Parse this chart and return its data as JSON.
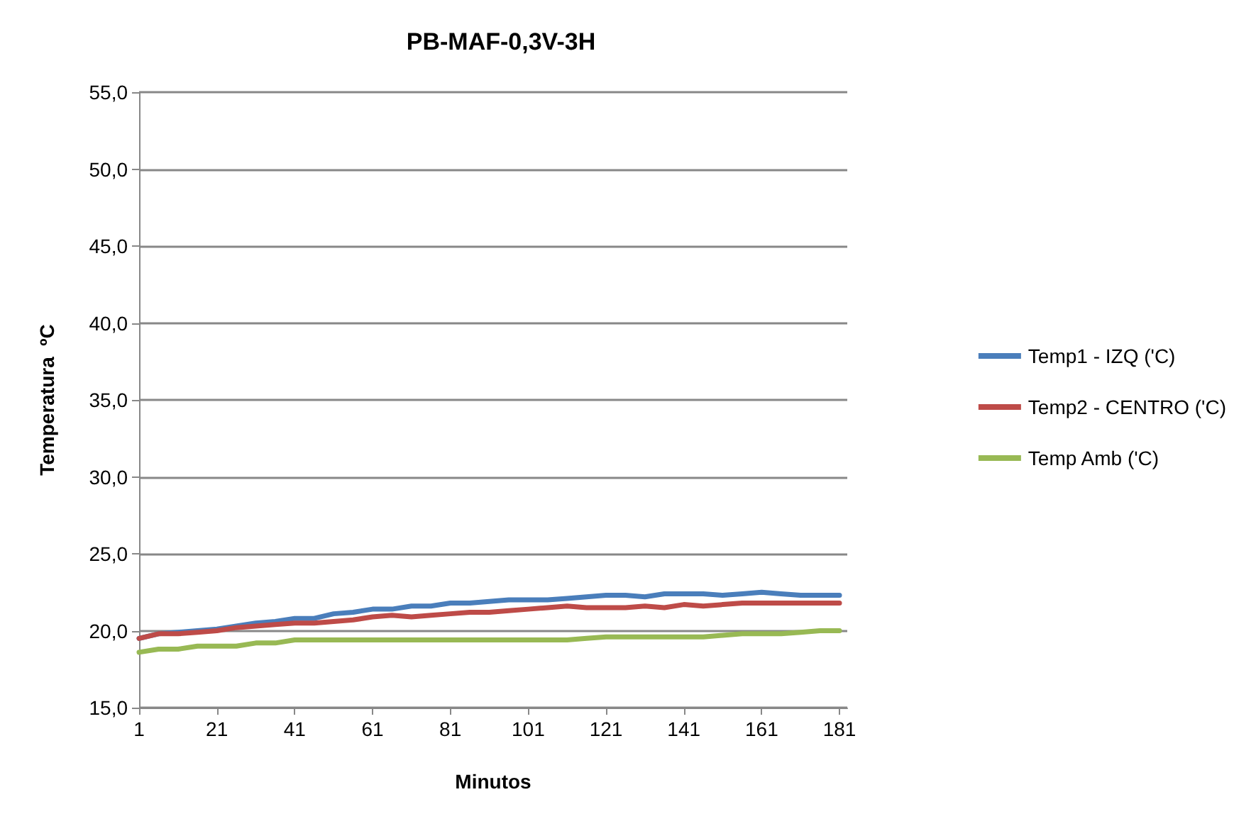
{
  "chart_data": {
    "type": "line",
    "title": "PB-MAF-0,3V-3H",
    "xlabel": "Minutos",
    "ylabel": "Temperatura  ºC",
    "x": [
      1,
      6,
      11,
      16,
      21,
      26,
      31,
      36,
      41,
      46,
      51,
      56,
      61,
      66,
      71,
      76,
      81,
      86,
      91,
      96,
      101,
      106,
      111,
      116,
      121,
      126,
      131,
      136,
      141,
      146,
      151,
      156,
      161,
      166,
      171,
      176,
      181
    ],
    "xlim": [
      1,
      183
    ],
    "xticks": [
      1,
      21,
      41,
      61,
      81,
      101,
      121,
      141,
      161,
      181
    ],
    "ylim": [
      15,
      55
    ],
    "yticks": [
      {
        "value": 15,
        "label": "15,0"
      },
      {
        "value": 20,
        "label": "20,0"
      },
      {
        "value": 25,
        "label": "25,0"
      },
      {
        "value": 30,
        "label": "30,0"
      },
      {
        "value": 35,
        "label": "35,0"
      },
      {
        "value": 40,
        "label": "40,0"
      },
      {
        "value": 45,
        "label": "45,0"
      },
      {
        "value": 50,
        "label": "50,0"
      },
      {
        "value": 55,
        "label": "55,0"
      }
    ],
    "grid": "y",
    "legend": "right",
    "marker": "none",
    "line_style": "solid",
    "series": [
      {
        "name": "Temp1 - IZQ ('C)",
        "color": "#4a7ebb",
        "values": [
          19.5,
          19.8,
          19.9,
          20.0,
          20.1,
          20.3,
          20.5,
          20.6,
          20.8,
          20.8,
          21.1,
          21.2,
          21.4,
          21.4,
          21.6,
          21.6,
          21.8,
          21.8,
          21.9,
          22.0,
          22.0,
          22.0,
          22.1,
          22.2,
          22.3,
          22.3,
          22.2,
          22.4,
          22.4,
          22.4,
          22.3,
          22.4,
          22.5,
          22.4,
          22.3,
          22.3,
          22.3
        ]
      },
      {
        "name": "Temp2 - CENTRO ('C)",
        "color": "#be4b48",
        "values": [
          19.5,
          19.8,
          19.8,
          19.9,
          20.0,
          20.2,
          20.3,
          20.4,
          20.5,
          20.5,
          20.6,
          20.7,
          20.9,
          21.0,
          20.9,
          21.0,
          21.1,
          21.2,
          21.2,
          21.3,
          21.4,
          21.5,
          21.6,
          21.5,
          21.5,
          21.5,
          21.6,
          21.5,
          21.7,
          21.6,
          21.7,
          21.8,
          21.8,
          21.8,
          21.8,
          21.8,
          21.8
        ]
      },
      {
        "name": "Temp Amb ('C)",
        "color": "#98b954",
        "values": [
          18.6,
          18.8,
          18.8,
          19.0,
          19.0,
          19.0,
          19.2,
          19.2,
          19.4,
          19.4,
          19.4,
          19.4,
          19.4,
          19.4,
          19.4,
          19.4,
          19.4,
          19.4,
          19.4,
          19.4,
          19.4,
          19.4,
          19.4,
          19.5,
          19.6,
          19.6,
          19.6,
          19.6,
          19.6,
          19.6,
          19.7,
          19.8,
          19.8,
          19.8,
          19.9,
          20.0,
          20.0
        ]
      }
    ]
  }
}
